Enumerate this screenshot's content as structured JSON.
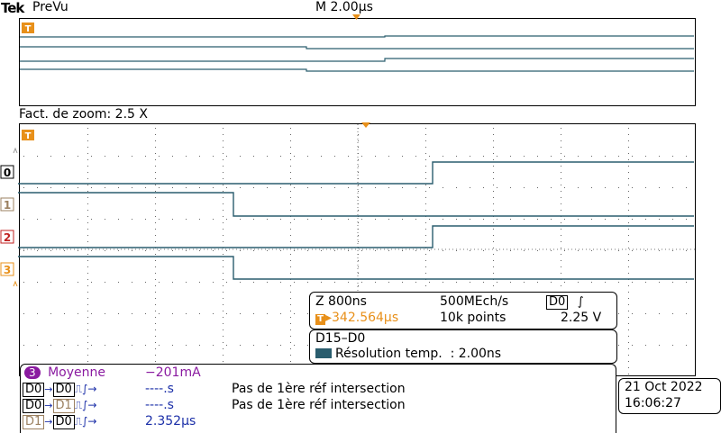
{
  "header": {
    "brand": "Tek",
    "mode": "PreVu",
    "timebase": "M 2.00µs"
  },
  "zoom": {
    "label": "Fact. de zoom: 2.5 X"
  },
  "trigger_marker": "T",
  "channel_markers": [
    "0",
    "1",
    "2",
    "3"
  ],
  "colors": {
    "trace": "#2a5d6e",
    "grid": "#555555",
    "orange": "#e8901a",
    "blue": "#1b2fa8",
    "purple": "#8a1aa0",
    "tan": "#9b8060",
    "red": "#c02020"
  },
  "acq_panel": {
    "zoom_time": "Z 800ns",
    "sample_rate": "500MEch/s",
    "trig_source": "D0",
    "trig_icon": "rising-edge-icon",
    "trig_pos": "▸342.564µs",
    "points": "10k points",
    "trig_level": "2.25 V"
  },
  "bus_panel": {
    "title": "D15–D0",
    "resolution_label": "Résolution temp.",
    "resolution_value": ": 2.00ns"
  },
  "measurements": {
    "ch3": {
      "badge": "3",
      "label": "Moyenne",
      "value": "−201mA"
    },
    "rows": [
      {
        "src": "D0",
        "dst": "D0",
        "value": "----.s",
        "note": "Pas de 1ère réf intersection"
      },
      {
        "src": "D0",
        "dst": "D1",
        "value": "----.s",
        "note": "Pas de 1ère réf intersection"
      },
      {
        "src": "D1",
        "dst": "D0",
        "value": "2.352µs",
        "note": ""
      }
    ]
  },
  "datetime": {
    "date": "21 Oct  2022",
    "time": "16:06:27"
  }
}
